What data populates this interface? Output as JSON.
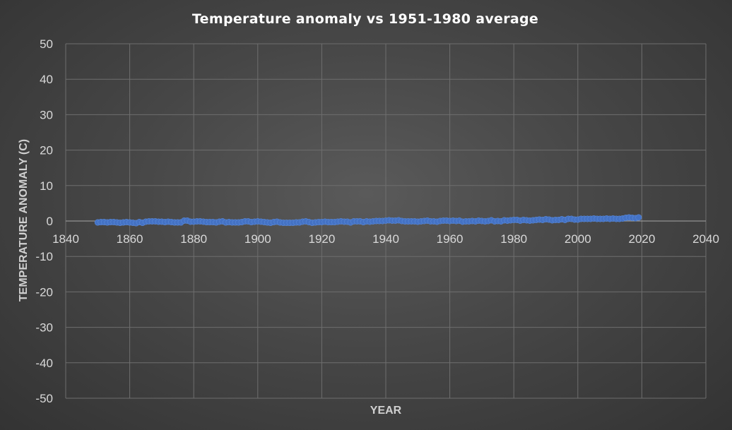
{
  "chart_data": {
    "type": "scatter",
    "title": "Temperature anomaly vs 1951-1980 average",
    "xlabel": "YEAR",
    "ylabel": "TEMPERATURE ANOMALY (C)",
    "xlim": [
      1840,
      2040
    ],
    "ylim": [
      -50,
      50
    ],
    "xticks": [
      1840,
      1860,
      1880,
      1900,
      1920,
      1940,
      1960,
      1980,
      2000,
      2020,
      2040
    ],
    "yticks": [
      50,
      40,
      30,
      20,
      10,
      0,
      -10,
      -20,
      -30,
      -40,
      -50
    ],
    "grid": true,
    "legend": "none",
    "marker_color": "#4472c4",
    "series": [
      {
        "x": [
          1850,
          1851,
          1852,
          1853,
          1854,
          1855,
          1856,
          1857,
          1858,
          1859,
          1860,
          1861,
          1862,
          1863,
          1864,
          1865,
          1866,
          1867,
          1868,
          1869,
          1870,
          1871,
          1872,
          1873,
          1874,
          1875,
          1876,
          1877,
          1878,
          1879,
          1880,
          1881,
          1882,
          1883,
          1884,
          1885,
          1886,
          1887,
          1888,
          1889,
          1890,
          1891,
          1892,
          1893,
          1894,
          1895,
          1896,
          1897,
          1898,
          1899,
          1900,
          1901,
          1902,
          1903,
          1904,
          1905,
          1906,
          1907,
          1908,
          1909,
          1910,
          1911,
          1912,
          1913,
          1914,
          1915,
          1916,
          1917,
          1918,
          1919,
          1920,
          1921,
          1922,
          1923,
          1924,
          1925,
          1926,
          1927,
          1928,
          1929,
          1930,
          1931,
          1932,
          1933,
          1934,
          1935,
          1936,
          1937,
          1938,
          1939,
          1940,
          1941,
          1942,
          1943,
          1944,
          1945,
          1946,
          1947,
          1948,
          1949,
          1950,
          1951,
          1952,
          1953,
          1954,
          1955,
          1956,
          1957,
          1958,
          1959,
          1960,
          1961,
          1962,
          1963,
          1964,
          1965,
          1966,
          1967,
          1968,
          1969,
          1970,
          1971,
          1972,
          1973,
          1974,
          1975,
          1976,
          1977,
          1978,
          1979,
          1980,
          1981,
          1982,
          1983,
          1984,
          1985,
          1986,
          1987,
          1988,
          1989,
          1990,
          1991,
          1992,
          1993,
          1994,
          1995,
          1996,
          1997,
          1998,
          1999,
          2000,
          2001,
          2002,
          2003,
          2004,
          2005,
          2006,
          2007,
          2008,
          2009,
          2010,
          2011,
          2012,
          2013,
          2014,
          2015,
          2016,
          2017,
          2018,
          2019
        ],
        "y": [
          -0.4,
          -0.3,
          -0.3,
          -0.4,
          -0.3,
          -0.3,
          -0.4,
          -0.5,
          -0.4,
          -0.3,
          -0.4,
          -0.5,
          -0.6,
          -0.3,
          -0.5,
          -0.2,
          -0.1,
          -0.1,
          -0.1,
          -0.2,
          -0.2,
          -0.3,
          -0.2,
          -0.3,
          -0.4,
          -0.4,
          -0.4,
          0.1,
          0.1,
          -0.2,
          -0.2,
          -0.1,
          -0.1,
          -0.2,
          -0.3,
          -0.3,
          -0.3,
          -0.4,
          -0.2,
          -0.1,
          -0.4,
          -0.3,
          -0.4,
          -0.4,
          -0.4,
          -0.3,
          -0.1,
          -0.1,
          -0.3,
          -0.2,
          -0.1,
          -0.2,
          -0.3,
          -0.4,
          -0.5,
          -0.3,
          -0.2,
          -0.4,
          -0.5,
          -0.5,
          -0.5,
          -0.5,
          -0.4,
          -0.4,
          -0.2,
          -0.1,
          -0.3,
          -0.5,
          -0.4,
          -0.3,
          -0.3,
          -0.2,
          -0.3,
          -0.3,
          -0.3,
          -0.2,
          -0.1,
          -0.2,
          -0.2,
          -0.4,
          -0.1,
          -0.1,
          -0.1,
          -0.3,
          -0.1,
          -0.2,
          -0.1,
          0.0,
          0.0,
          0.0,
          0.1,
          0.2,
          0.1,
          0.1,
          0.2,
          0.0,
          -0.1,
          -0.1,
          -0.1,
          -0.1,
          -0.2,
          -0.1,
          0.0,
          0.1,
          -0.1,
          -0.1,
          -0.2,
          0.0,
          0.1,
          0.1,
          0.0,
          0.1,
          0.0,
          0.1,
          -0.2,
          -0.1,
          -0.1,
          0.0,
          -0.1,
          0.1,
          0.0,
          -0.1,
          0.0,
          0.2,
          -0.1,
          0.0,
          -0.1,
          0.2,
          0.1,
          0.2,
          0.3,
          0.3,
          0.1,
          0.3,
          0.2,
          0.1,
          0.2,
          0.3,
          0.4,
          0.3,
          0.5,
          0.4,
          0.2,
          0.3,
          0.3,
          0.5,
          0.3,
          0.6,
          0.6,
          0.4,
          0.4,
          0.6,
          0.6,
          0.6,
          0.6,
          0.7,
          0.6,
          0.6,
          0.6,
          0.7,
          0.6,
          0.7,
          0.6,
          0.6,
          0.7,
          0.9,
          1.0,
          0.9,
          0.8,
          1.0
        ]
      }
    ]
  }
}
